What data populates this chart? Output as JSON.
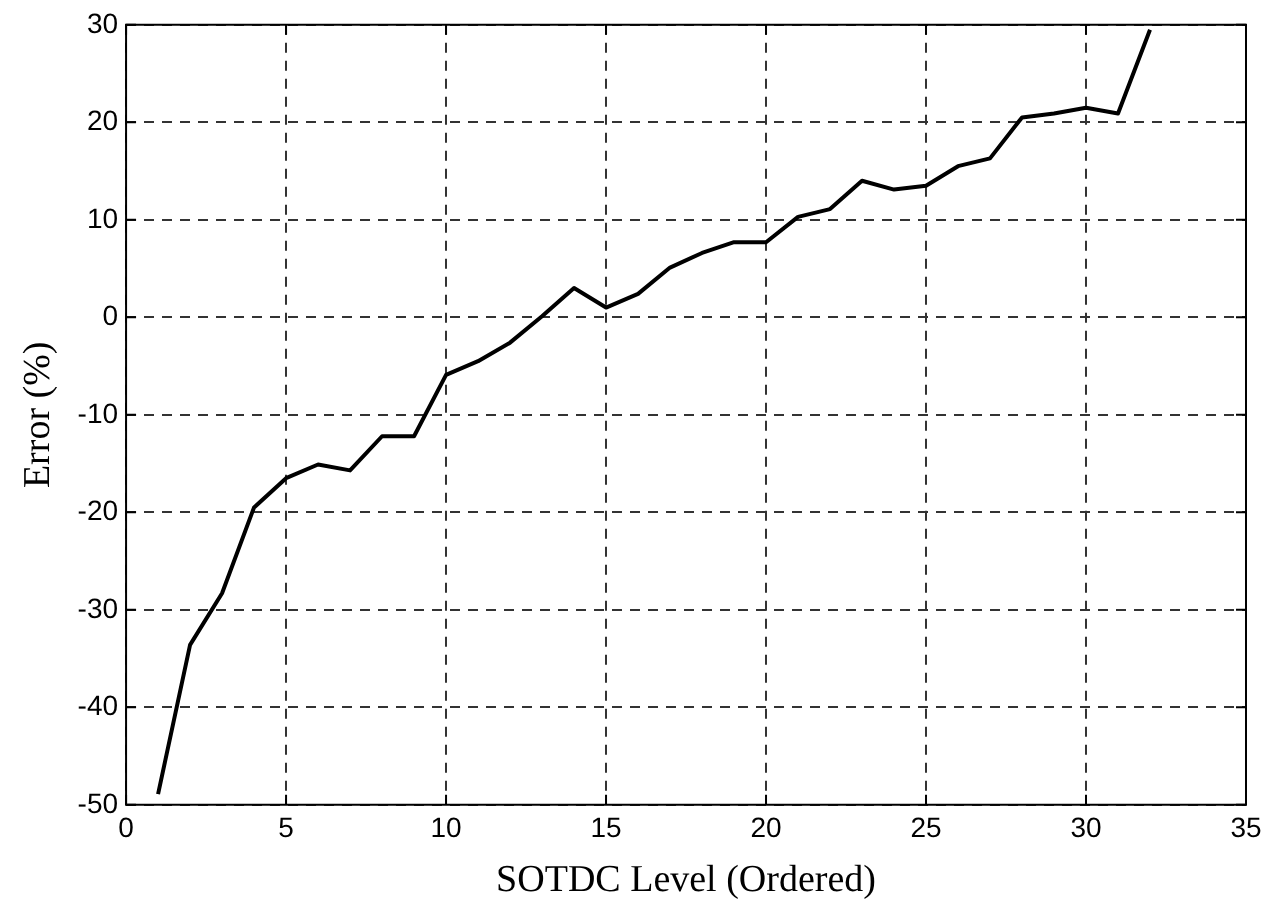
{
  "chart_data": {
    "type": "line",
    "xlabel": "SOTDC Level (Ordered)",
    "ylabel": "Error (%)",
    "x": [
      1,
      2,
      3,
      4,
      5,
      6,
      7,
      8,
      9,
      10,
      11,
      12,
      13,
      14,
      15,
      16,
      17,
      18,
      19,
      20,
      21,
      22,
      23,
      24,
      25,
      26,
      27,
      28,
      29,
      30,
      31,
      32
    ],
    "series": [
      {
        "color": "#000000",
        "values": [
          -48.9,
          -33.6,
          -28.3,
          -19.5,
          -16.5,
          -15.1,
          -15.7,
          -12.2,
          -12.2,
          -5.9,
          -4.5,
          -2.6,
          0.1,
          3.0,
          1.0,
          2.4,
          5.1,
          6.6,
          7.7,
          7.7,
          10.3,
          11.1,
          14.0,
          13.1,
          13.5,
          15.5,
          16.3,
          20.5,
          20.9,
          21.5,
          20.9,
          29.5
        ]
      }
    ],
    "xlim": [
      0,
      35
    ],
    "xticks": [
      0,
      5,
      10,
      15,
      20,
      25,
      30,
      35
    ],
    "ylim": [
      -50,
      30
    ],
    "yticks": [
      -50,
      -40,
      -30,
      -20,
      -10,
      0,
      10,
      20,
      30
    ],
    "grid": true,
    "legend": false,
    "marker": "none",
    "line_style": "solid"
  }
}
